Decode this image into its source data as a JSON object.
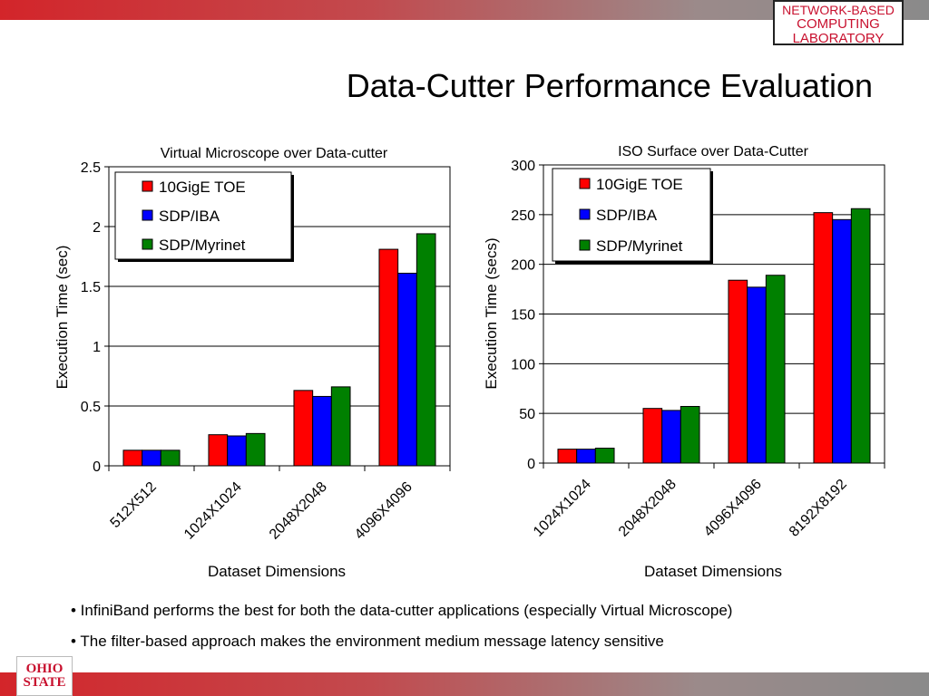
{
  "header": {
    "logo_lines": [
      "NETWORK-BASED",
      "COMPUTING",
      "LABORATORY"
    ],
    "title": "Data-Cutter Performance Evaluation",
    "university_logo": [
      "OHIO",
      "STATE"
    ]
  },
  "bullets": [
    "• InfiniBand performs the best for both the data-cutter applications (especially Virtual Microscope)",
    "• The filter-based approach makes the environment medium message latency sensitive"
  ],
  "colors": {
    "10GigE TOE": "#ff0000",
    "SDP/IBA": "#0000ff",
    "SDP/Myrinet": "#008000",
    "brand": "#c8102e"
  },
  "chart_data": [
    {
      "type": "bar",
      "title": "Virtual Microscope over Data-cutter",
      "xlabel": "Dataset Dimensions",
      "ylabel": "Execution Time (sec)",
      "categories": [
        "512X512",
        "1024X1024",
        "2048X2048",
        "4096X4096"
      ],
      "ylim": [
        0,
        2.5
      ],
      "yticks": [
        "0",
        "0.5",
        "1",
        "1.5",
        "2",
        "2.5"
      ],
      "grid": true,
      "legend_position": "top-left",
      "series": [
        {
          "name": "10GigE TOE",
          "values": [
            0.13,
            0.26,
            0.63,
            1.81
          ]
        },
        {
          "name": "SDP/IBA",
          "values": [
            0.13,
            0.25,
            0.58,
            1.61
          ]
        },
        {
          "name": "SDP/Myrinet",
          "values": [
            0.13,
            0.27,
            0.66,
            1.94
          ]
        }
      ]
    },
    {
      "type": "bar",
      "title": "ISO Surface over Data-Cutter",
      "xlabel": "Dataset Dimensions",
      "ylabel": "Execution Time (secs)",
      "categories": [
        "1024X1024",
        "2048X2048",
        "4096X4096",
        "8192X8192"
      ],
      "ylim": [
        0,
        300
      ],
      "yticks": [
        "0",
        "50",
        "100",
        "150",
        "200",
        "250",
        "300"
      ],
      "grid": true,
      "legend_position": "top-left",
      "series": [
        {
          "name": "10GigE TOE",
          "values": [
            14,
            55,
            184,
            252
          ]
        },
        {
          "name": "SDP/IBA",
          "values": [
            14,
            53,
            177,
            245
          ]
        },
        {
          "name": "SDP/Myrinet",
          "values": [
            15,
            57,
            189,
            256
          ]
        }
      ]
    }
  ]
}
